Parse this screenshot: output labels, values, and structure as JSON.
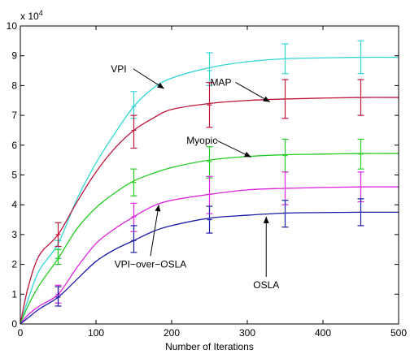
{
  "chart_data": {
    "type": "line",
    "title": "",
    "xlabel": "Number of Iterations",
    "ylabel": "",
    "y_multiplier_label": "x 10",
    "y_multiplier_exp": "4",
    "xlim": [
      0,
      500
    ],
    "ylim": [
      0,
      10
    ],
    "x_ticks": [
      "0",
      "100",
      "200",
      "300",
      "400",
      "500"
    ],
    "y_ticks": [
      "0",
      "1",
      "2",
      "3",
      "4",
      "5",
      "6",
      "7",
      "8",
      "9",
      "10"
    ],
    "grid": false,
    "legend": "none",
    "series": [
      {
        "name": "VPI",
        "color": "#33d6d6",
        "x": [
          0,
          10,
          25,
          50,
          75,
          100,
          125,
          150,
          175,
          200,
          250,
          300,
          350,
          400,
          450,
          500
        ],
        "y": [
          0,
          0.8,
          1.8,
          2.7,
          4.2,
          5.4,
          6.4,
          7.3,
          7.9,
          8.25,
          8.6,
          8.8,
          8.9,
          8.93,
          8.95,
          8.95
        ],
        "error_x": [
          50,
          150,
          250,
          350,
          450
        ],
        "error_y": [
          2.5,
          7.3,
          8.5,
          8.9,
          8.95
        ],
        "error_lo": [
          2.2,
          6.9,
          8.0,
          8.4,
          8.4
        ],
        "error_hi": [
          2.8,
          7.8,
          9.1,
          9.4,
          9.5
        ]
      },
      {
        "name": "MAP",
        "color": "#c0143c",
        "x": [
          0,
          10,
          25,
          50,
          75,
          100,
          125,
          150,
          175,
          200,
          250,
          300,
          350,
          400,
          450,
          500
        ],
        "y": [
          0,
          1.2,
          2.3,
          3.0,
          4.1,
          5.1,
          5.9,
          6.5,
          6.9,
          7.2,
          7.4,
          7.5,
          7.55,
          7.58,
          7.6,
          7.6
        ],
        "error_x": [
          50,
          150,
          250,
          350,
          450
        ],
        "error_y": [
          3.0,
          6.5,
          7.35,
          7.55,
          7.6
        ],
        "error_lo": [
          2.6,
          5.9,
          6.6,
          6.9,
          7.0
        ],
        "error_hi": [
          3.4,
          7.0,
          8.1,
          8.2,
          8.2
        ]
      },
      {
        "name": "Myopic",
        "color": "#22cc22",
        "x": [
          0,
          10,
          25,
          50,
          75,
          100,
          125,
          150,
          175,
          200,
          250,
          300,
          350,
          400,
          450,
          500
        ],
        "y": [
          0,
          0.6,
          1.3,
          2.2,
          3.2,
          3.9,
          4.4,
          4.8,
          5.05,
          5.25,
          5.5,
          5.62,
          5.68,
          5.7,
          5.72,
          5.72
        ],
        "error_x": [
          50,
          150,
          250,
          350,
          450
        ],
        "error_y": [
          2.2,
          4.75,
          5.45,
          5.65,
          5.7
        ],
        "error_lo": [
          2.0,
          4.3,
          4.9,
          5.1,
          5.2
        ],
        "error_hi": [
          2.5,
          5.2,
          5.95,
          6.2,
          6.2
        ]
      },
      {
        "name": "VPI−over−OSLA",
        "color": "#dd22dd",
        "x": [
          0,
          10,
          25,
          50,
          75,
          100,
          125,
          150,
          175,
          200,
          250,
          300,
          350,
          400,
          450,
          500
        ],
        "y": [
          0,
          0.3,
          0.6,
          1.0,
          1.9,
          2.7,
          3.2,
          3.6,
          3.95,
          4.15,
          4.35,
          4.5,
          4.55,
          4.58,
          4.6,
          4.6
        ],
        "error_x": [
          50,
          150,
          250,
          350,
          450
        ],
        "error_y": [
          1.0,
          3.6,
          4.35,
          4.55,
          4.6
        ],
        "error_lo": [
          0.7,
          3.1,
          3.7,
          4.0,
          4.1
        ],
        "error_hi": [
          1.3,
          4.05,
          4.95,
          5.1,
          5.1
        ]
      },
      {
        "name": "OSLA",
        "color": "#1a1aa6",
        "x": [
          0,
          10,
          25,
          50,
          75,
          100,
          125,
          150,
          175,
          200,
          250,
          300,
          350,
          400,
          450,
          500
        ],
        "y": [
          0,
          0.2,
          0.5,
          0.9,
          1.5,
          2.1,
          2.5,
          2.8,
          3.1,
          3.3,
          3.55,
          3.65,
          3.72,
          3.74,
          3.75,
          3.75
        ],
        "error_x": [
          50,
          150,
          250,
          350,
          450
        ],
        "error_y": [
          0.9,
          2.8,
          3.5,
          3.72,
          3.75
        ],
        "error_lo": [
          0.6,
          2.4,
          3.05,
          3.25,
          3.3
        ],
        "error_hi": [
          1.25,
          3.3,
          3.95,
          4.15,
          4.2
        ]
      }
    ],
    "annotations": [
      {
        "text": "VPI",
        "series": "VPI",
        "at_x": 190,
        "at_y": 7.9,
        "label_x": 130,
        "label_y": 8.45
      },
      {
        "text": "MAP",
        "series": "MAP",
        "at_x": 330,
        "at_y": 7.45,
        "label_x": 265,
        "label_y": 8.0
      },
      {
        "text": "Myopic",
        "series": "Myopic",
        "at_x": 305,
        "at_y": 5.6,
        "label_x": 240,
        "label_y": 6.05
      },
      {
        "text": "VPI−over−OSLA",
        "series": "VPI−over−OSLA",
        "at_x": 183,
        "at_y": 4.0,
        "label_x": 172,
        "label_y": 1.9
      },
      {
        "text": "OSLA",
        "series": "OSLA",
        "at_x": 325,
        "at_y": 3.6,
        "label_x": 325,
        "label_y": 1.2
      }
    ]
  }
}
